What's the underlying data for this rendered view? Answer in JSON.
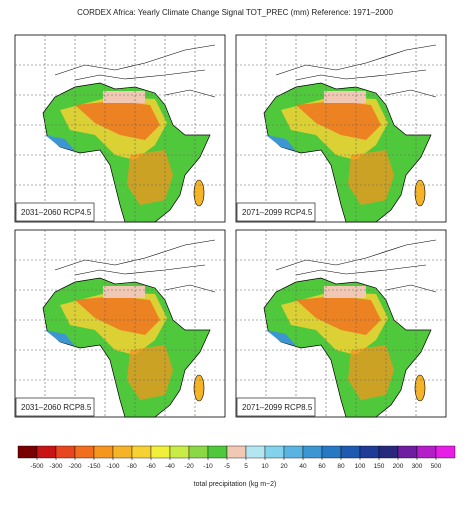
{
  "title": "CORDEX Africa: Yearly Climate Change Signal TOT_PREC (mm) Reference: 1971–2000",
  "panels": [
    {
      "label": "2031–2060 RCP4.5"
    },
    {
      "label": "2071–2099 RCP4.5"
    },
    {
      "label": "2031–2060 RCP8.5"
    },
    {
      "label": "2071–2099 RCP8.5"
    }
  ],
  "colorbar": {
    "label": "total precipitation (kg m−2)",
    "ticks": [
      -500,
      -300,
      -200,
      -150,
      -100,
      -80,
      -60,
      -40,
      -20,
      -10,
      -5,
      5,
      10,
      20,
      40,
      60,
      80,
      100,
      150,
      200,
      300,
      500
    ],
    "colors": [
      "#7a0000",
      "#c81414",
      "#e8461e",
      "#f06e1e",
      "#f5961e",
      "#f5b428",
      "#f5d232",
      "#f0f03c",
      "#c8eb46",
      "#8cd746",
      "#50c83c",
      "#f0c8b4",
      "#b4e6f0",
      "#82d2eb",
      "#5ab4e1",
      "#3c96d2",
      "#2878c3",
      "#1e5aaf",
      "#1e3c96",
      "#28287d",
      "#6e1ea0",
      "#b41ec8",
      "#e61ee6"
    ]
  }
}
